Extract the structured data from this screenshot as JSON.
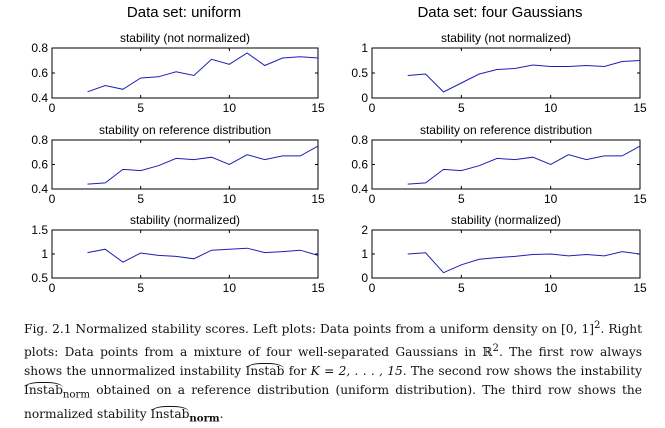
{
  "columns": [
    {
      "title": "Data set: uniform"
    },
    {
      "title": "Data set: four Gaussians"
    }
  ],
  "chart_data": [
    {
      "type": "line",
      "column": 0,
      "row": 0,
      "title": "stability (not normalized)",
      "xlim": [
        0,
        15
      ],
      "ylim": [
        0.4,
        0.8
      ],
      "xticks": [
        0,
        5,
        10,
        15
      ],
      "yticks": [
        0.4,
        0.6,
        0.8
      ],
      "x": [
        2,
        3,
        4,
        5,
        6,
        7,
        8,
        9,
        10,
        11,
        12,
        13,
        14,
        15
      ],
      "values": [
        0.45,
        0.5,
        0.47,
        0.56,
        0.57,
        0.61,
        0.58,
        0.71,
        0.67,
        0.76,
        0.66,
        0.72,
        0.73,
        0.72
      ]
    },
    {
      "type": "line",
      "column": 1,
      "row": 0,
      "title": "stability (not normalized)",
      "xlim": [
        0,
        15
      ],
      "ylim": [
        0,
        1
      ],
      "xticks": [
        0,
        5,
        10,
        15
      ],
      "yticks": [
        0,
        0.5,
        1
      ],
      "x": [
        2,
        3,
        4,
        5,
        6,
        7,
        8,
        9,
        10,
        11,
        12,
        13,
        14,
        15
      ],
      "values": [
        0.45,
        0.48,
        0.12,
        0.3,
        0.48,
        0.57,
        0.59,
        0.66,
        0.63,
        0.63,
        0.65,
        0.63,
        0.73,
        0.75
      ]
    },
    {
      "type": "line",
      "column": 0,
      "row": 1,
      "title": "stability on reference distribution",
      "xlim": [
        0,
        15
      ],
      "ylim": [
        0.4,
        0.8
      ],
      "xticks": [
        0,
        5,
        10,
        15
      ],
      "yticks": [
        0.4,
        0.6,
        0.8
      ],
      "x": [
        2,
        3,
        4,
        5,
        6,
        7,
        8,
        9,
        10,
        11,
        12,
        13,
        14,
        15
      ],
      "values": [
        0.44,
        0.45,
        0.56,
        0.55,
        0.59,
        0.65,
        0.64,
        0.66,
        0.6,
        0.68,
        0.64,
        0.67,
        0.67,
        0.75
      ]
    },
    {
      "type": "line",
      "column": 1,
      "row": 1,
      "title": "stability on reference distribution",
      "xlim": [
        0,
        15
      ],
      "ylim": [
        0.4,
        0.8
      ],
      "xticks": [
        0,
        5,
        10,
        15
      ],
      "yticks": [
        0.4,
        0.6,
        0.8
      ],
      "x": [
        2,
        3,
        4,
        5,
        6,
        7,
        8,
        9,
        10,
        11,
        12,
        13,
        14,
        15
      ],
      "values": [
        0.44,
        0.45,
        0.56,
        0.55,
        0.59,
        0.65,
        0.64,
        0.66,
        0.6,
        0.68,
        0.64,
        0.67,
        0.67,
        0.75
      ]
    },
    {
      "type": "line",
      "column": 0,
      "row": 2,
      "title": "stability (normalized)",
      "xlim": [
        0,
        15
      ],
      "ylim": [
        0.5,
        1.5
      ],
      "xticks": [
        0,
        5,
        10,
        15
      ],
      "yticks": [
        0.5,
        1,
        1.5
      ],
      "x": [
        2,
        3,
        4,
        5,
        6,
        7,
        8,
        9,
        10,
        11,
        12,
        13,
        14,
        15
      ],
      "values": [
        1.03,
        1.1,
        0.83,
        1.02,
        0.97,
        0.95,
        0.9,
        1.08,
        1.1,
        1.12,
        1.03,
        1.05,
        1.08,
        0.97
      ]
    },
    {
      "type": "line",
      "column": 1,
      "row": 2,
      "title": "stability (normalized)",
      "xlim": [
        0,
        15
      ],
      "ylim": [
        0,
        2
      ],
      "xticks": [
        0,
        5,
        10,
        15
      ],
      "yticks": [
        0,
        1,
        2
      ],
      "x": [
        2,
        3,
        4,
        5,
        6,
        7,
        8,
        9,
        10,
        11,
        12,
        13,
        14,
        15
      ],
      "values": [
        1.0,
        1.05,
        0.22,
        0.55,
        0.78,
        0.85,
        0.9,
        0.98,
        1.0,
        0.92,
        0.98,
        0.92,
        1.1,
        1.0
      ]
    }
  ],
  "caption": {
    "p1": "Fig. 2.1 Normalized stability scores. Left plots: Data points from a uniform density on ",
    "p2": "[0, 1]",
    "p3": "2",
    "p4": ". Right plots: Data points from a mixture of four well-separated Gaussians in ",
    "p5": "ℝ",
    "p6": "2",
    "p7": ". The first row always shows the unnormalized instability ",
    "p8": "Instab",
    "p9": " for ",
    "p10": "K = 2, . . . , 15",
    "p11": ". The second row shows the instability ",
    "p12": "Instab",
    "p13": "norm",
    "p14": " obtained on a reference distribution (uniform distribution). The third row shows the normalized stability ",
    "p15": "Instab",
    "p16": "norm",
    "p17": "."
  }
}
